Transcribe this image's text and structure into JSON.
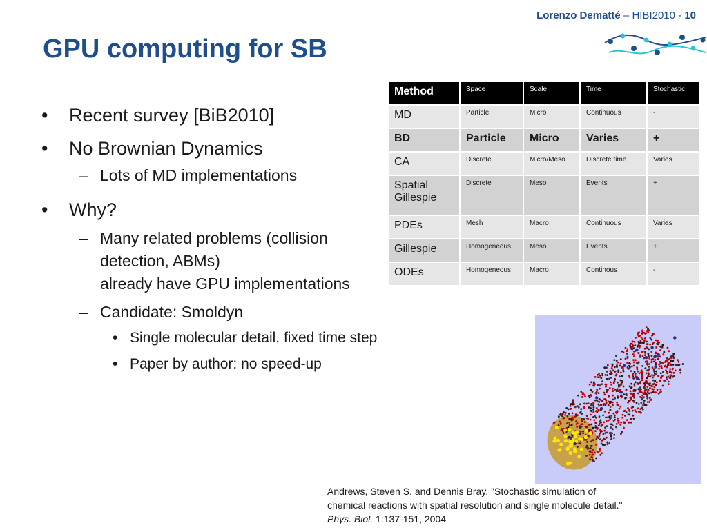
{
  "header": {
    "author": "Lorenzo Dematté",
    "separator": " – ",
    "event": "HIBI2010 - ",
    "page_number": "10"
  },
  "title": "GPU computing for SB",
  "bullets": {
    "item1": "Recent survey [BiB2010]",
    "item2": "No Brownian Dynamics",
    "item2_sub1": "Lots of MD implementations",
    "item3": "Why?",
    "item3_sub1": "Many related problems (collision\ndetection, ABMs)\nalready have GPU implementations",
    "item3_sub2": "Candidate: Smoldyn",
    "item3_sub2_a": "Single molecular detail, fixed time step",
    "item3_sub2_b": "Paper by author: no speed-up",
    "marker_l1": "•",
    "marker_l2": "–",
    "marker_l3": "•"
  },
  "table": {
    "headers": [
      "Method",
      "Space",
      "Scale",
      "Time",
      "Stochastic"
    ],
    "rows": [
      [
        "MD",
        "Particle",
        "Micro",
        "Continuous",
        "-"
      ],
      [
        "BD",
        "Particle",
        "Micro",
        "Varies",
        "+"
      ],
      [
        "CA",
        "Discrete",
        "Micro/Meso",
        "Discrete time",
        "Varies"
      ],
      [
        "Spatial Gillespie",
        "Discrete",
        "Meso",
        "Events",
        "+"
      ],
      [
        "PDEs",
        "Mesh",
        "Macro",
        "Continuous",
        "Varies"
      ],
      [
        "Gillespie",
        "Homogeneous",
        "Meso",
        "Events",
        "+"
      ],
      [
        "ODEs",
        "Homogeneous",
        "Macro",
        "Continous",
        "-"
      ]
    ]
  },
  "citation": {
    "text": "Andrews, Steven S. and Dennis Bray. \"Stochastic simulation of chemical reactions with spatial resolution and single molecule detail.\" ",
    "journal": "Phys. Biol.",
    "ref": " 1:137-151, 2004"
  },
  "colors": {
    "accent": "#1f4e8c",
    "logo_dots": "#2ec4d6",
    "table_header": "#000000",
    "row_light": "#e6e6e6",
    "row_dark": "#d2d2d2",
    "image_bg": "#c9cbf8"
  }
}
